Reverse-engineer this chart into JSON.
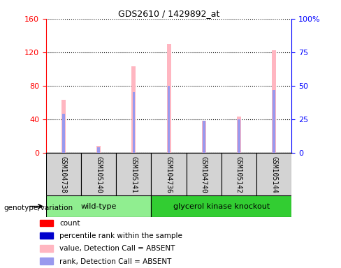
{
  "title": "GDS2610 / 1429892_at",
  "samples": [
    "GSM104738",
    "GSM105140",
    "GSM105141",
    "GSM104736",
    "GSM104740",
    "GSM105142",
    "GSM105144"
  ],
  "groups": [
    "wild-type",
    "wild-type",
    "wild-type",
    "glycerol kinase knockout",
    "glycerol kinase knockout",
    "glycerol kinase knockout",
    "glycerol kinase knockout"
  ],
  "pink_values": [
    63,
    8,
    103,
    130,
    38,
    43,
    122
  ],
  "blue_rank_values": [
    29,
    4,
    45,
    50,
    24,
    25,
    47
  ],
  "left_ylim": [
    0,
    160
  ],
  "right_ylim": [
    0,
    100
  ],
  "left_yticks": [
    0,
    40,
    80,
    120,
    160
  ],
  "right_yticks": [
    0,
    25,
    50,
    75,
    100
  ],
  "right_yticklabels": [
    "0",
    "25",
    "50",
    "75",
    "100%"
  ],
  "pink_bar_width": 0.12,
  "blue_bar_width": 0.07,
  "pink_color": "#FFB6C1",
  "blue_color": "#9999EE",
  "red_color": "#FF0000",
  "dark_blue_color": "#0000CC",
  "bg_color": "#D3D3D3",
  "wt_color": "#90EE90",
  "gk_color": "#32CD32",
  "legend_labels": [
    "count",
    "percentile rank within the sample",
    "value, Detection Call = ABSENT",
    "rank, Detection Call = ABSENT"
  ],
  "legend_colors": [
    "#FF0000",
    "#0000CC",
    "#FFB6C1",
    "#9999EE"
  ]
}
